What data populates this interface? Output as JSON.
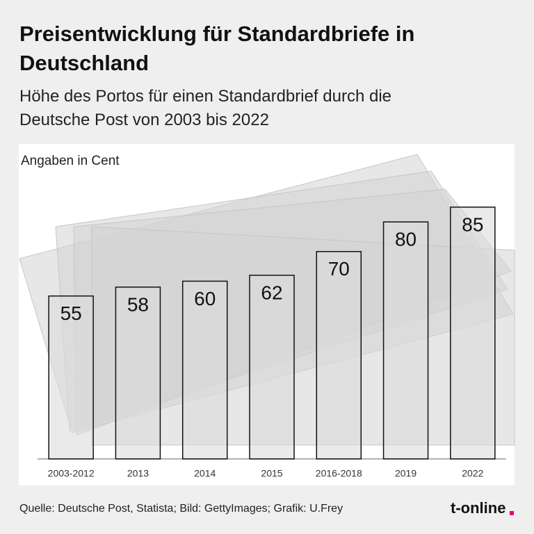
{
  "chart_data": {
    "type": "bar",
    "title": "Preisentwicklung für Standardbriefe in Deutschland",
    "subtitle": "Höhe des Portos für einen Standardbrief durch die Deutsche Post von 2003 bis 2022",
    "unit_label": "Angaben in Cent",
    "categories": [
      "2003-2012",
      "2013",
      "2014",
      "2015",
      "2016-2018",
      "2019",
      "2022"
    ],
    "values": [
      55,
      58,
      60,
      62,
      70,
      80,
      85
    ],
    "color": "#dcdcdc",
    "ylim": [
      0,
      100
    ],
    "grid": false,
    "source": "Quelle: Deutsche Post, Statista; Bild: GettyImages; Grafik: U.Frey",
    "logo": "t-online"
  }
}
